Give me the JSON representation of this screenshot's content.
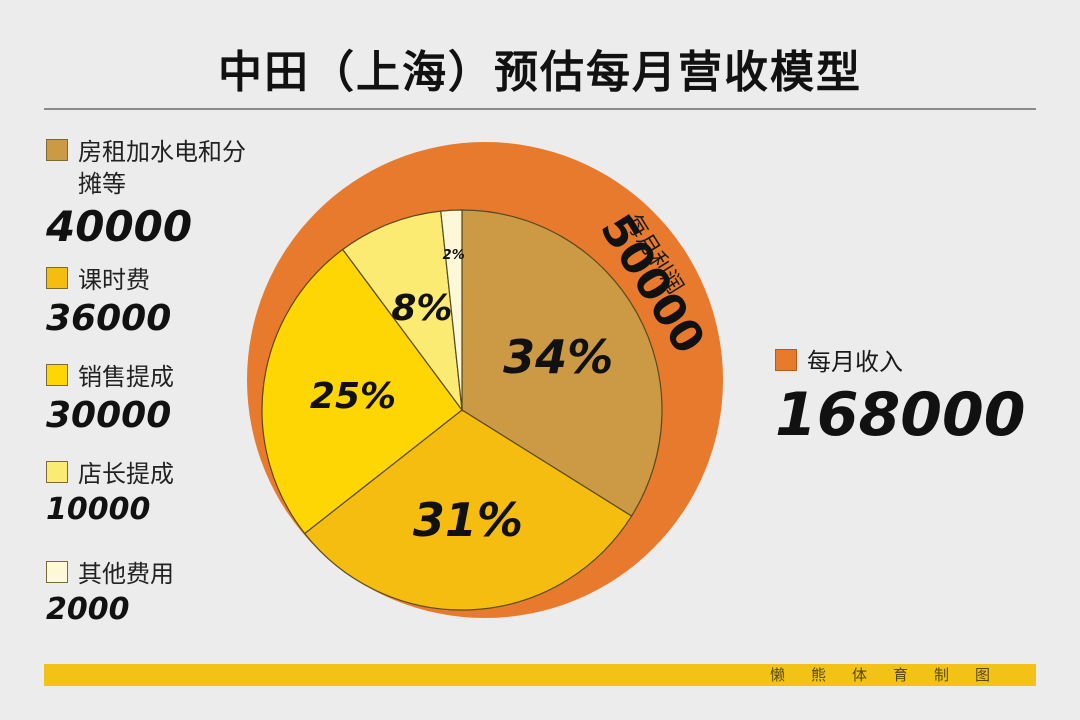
{
  "title": "中田（上海）预估每月营收模型",
  "legend": [
    {
      "label": "房租加水电和分摊等",
      "value": "40000",
      "color": "#cc9a45"
    },
    {
      "label": "课时费",
      "value": "36000",
      "color": "#f5bd0f"
    },
    {
      "label": "销售提成",
      "value": "30000",
      "color": "#fdd604"
    },
    {
      "label": "店长提成",
      "value": "10000",
      "color": "#fbeb73"
    },
    {
      "label": "其他费用",
      "value": "2000",
      "color": "#fdf8d8"
    }
  ],
  "income": {
    "label": "每月收入",
    "value": "168000",
    "color": "#e87a2e"
  },
  "profit": {
    "label": "每月利润",
    "value": "50000"
  },
  "footer": "懒熊体育制图",
  "chart_data": {
    "type": "pie",
    "categories": [
      "房租加水电和分摊等",
      "课时费",
      "销售提成",
      "店长提成",
      "其他费用"
    ],
    "values": [
      40000,
      36000,
      30000,
      10000,
      2000
    ],
    "percent_labels": [
      "34%",
      "31%",
      "25%",
      "8%",
      "2%"
    ],
    "colors": [
      "#cc9a45",
      "#f5bd0f",
      "#fdd604",
      "#fbeb73",
      "#fdf8d8"
    ],
    "outer_ring": {
      "label": "每月利润",
      "value": 50000,
      "color": "#e87a2e"
    },
    "total_income": 168000,
    "title": "中田（上海）预估每月营收模型"
  }
}
